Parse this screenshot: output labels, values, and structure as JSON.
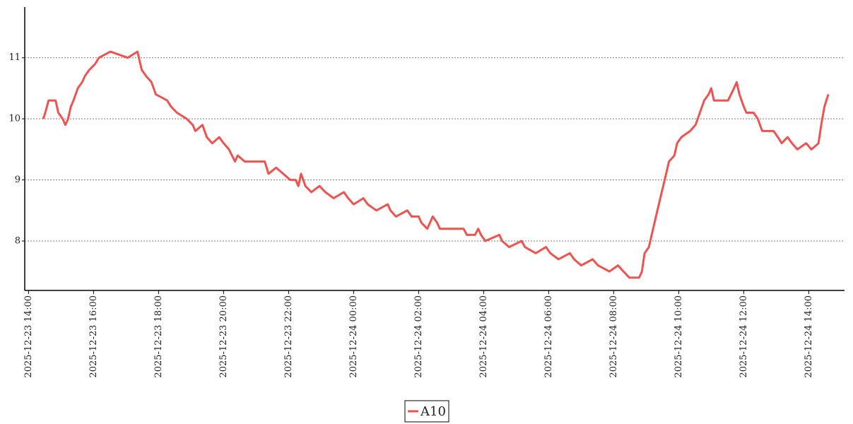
{
  "chart_data": {
    "type": "line",
    "x": [
      "2025-12-23 14:27",
      "2025-12-23 14:31",
      "2025-12-23 14:37",
      "2025-12-23 14:50",
      "2025-12-23 14:55",
      "2025-12-23 15:03",
      "2025-12-23 15:08",
      "2025-12-23 15:13",
      "2025-12-23 15:18",
      "2025-12-23 15:23",
      "2025-12-23 15:31",
      "2025-12-23 15:39",
      "2025-12-23 15:44",
      "2025-12-23 15:52",
      "2025-12-23 16:03",
      "2025-12-23 16:10",
      "2025-12-23 16:31",
      "2025-12-23 17:03",
      "2025-12-23 17:21",
      "2025-12-23 17:29",
      "2025-12-23 17:37",
      "2025-12-23 17:47",
      "2025-12-23 17:55",
      "2025-12-23 18:16",
      "2025-12-23 18:23",
      "2025-12-23 18:34",
      "2025-12-23 18:52",
      "2025-12-23 19:03",
      "2025-12-23 19:08",
      "2025-12-23 19:21",
      "2025-12-23 19:29",
      "2025-12-23 19:39",
      "2025-12-23 19:52",
      "2025-12-23 20:00",
      "2025-12-23 20:10",
      "2025-12-23 20:21",
      "2025-12-23 20:26",
      "2025-12-23 20:39",
      "2025-12-23 21:16",
      "2025-12-23 21:23",
      "2025-12-23 21:37",
      "2025-12-23 21:50",
      "2025-12-23 22:03",
      "2025-12-23 22:13",
      "2025-12-23 22:18",
      "2025-12-23 22:23",
      "2025-12-23 22:31",
      "2025-12-23 22:42",
      "2025-12-23 22:57",
      "2025-12-23 23:08",
      "2025-12-23 23:23",
      "2025-12-23 23:42",
      "2025-12-23 23:50",
      "2025-12-24 00:00",
      "2025-12-24 00:18",
      "2025-12-24 00:26",
      "2025-12-24 00:42",
      "2025-12-24 01:03",
      "2025-12-24 01:08",
      "2025-12-24 01:18",
      "2025-12-24 01:39",
      "2025-12-24 01:47",
      "2025-12-24 02:00",
      "2025-12-24 02:05",
      "2025-12-24 02:16",
      "2025-12-24 02:21",
      "2025-12-24 02:26",
      "2025-12-24 02:34",
      "2025-12-24 02:39",
      "2025-12-24 03:23",
      "2025-12-24 03:29",
      "2025-12-24 03:44",
      "2025-12-24 03:50",
      "2025-12-24 03:55",
      "2025-12-24 04:03",
      "2025-12-24 04:29",
      "2025-12-24 04:34",
      "2025-12-24 04:47",
      "2025-12-24 05:10",
      "2025-12-24 05:16",
      "2025-12-24 05:36",
      "2025-12-24 05:55",
      "2025-12-24 06:03",
      "2025-12-24 06:18",
      "2025-12-24 06:39",
      "2025-12-24 06:47",
      "2025-12-24 07:00",
      "2025-12-24 07:21",
      "2025-12-24 07:31",
      "2025-12-24 07:52",
      "2025-12-24 08:08",
      "2025-12-24 08:18",
      "2025-12-24 08:29",
      "2025-12-24 08:47",
      "2025-12-24 08:52",
      "2025-12-24 08:57",
      "2025-12-24 09:05",
      "2025-12-24 09:10",
      "2025-12-24 09:18",
      "2025-12-24 09:26",
      "2025-12-24 09:34",
      "2025-12-24 09:42",
      "2025-12-24 09:52",
      "2025-12-24 09:57",
      "2025-12-24 10:05",
      "2025-12-24 10:21",
      "2025-12-24 10:31",
      "2025-12-24 10:39",
      "2025-12-24 10:47",
      "2025-12-24 10:55",
      "2025-12-24 11:00",
      "2025-12-24 11:05",
      "2025-12-24 11:13",
      "2025-12-24 11:31",
      "2025-12-24 11:42",
      "2025-12-24 11:47",
      "2025-12-24 11:52",
      "2025-12-24 12:00",
      "2025-12-24 12:05",
      "2025-12-24 12:18",
      "2025-12-24 12:26",
      "2025-12-24 12:34",
      "2025-12-24 12:47",
      "2025-12-24 12:55",
      "2025-12-24 13:03",
      "2025-12-24 13:10",
      "2025-12-24 13:21",
      "2025-12-24 13:29",
      "2025-12-24 13:39",
      "2025-12-24 13:55",
      "2025-12-24 14:05",
      "2025-12-24 14:18",
      "2025-12-24 14:23",
      "2025-12-24 14:29",
      "2025-12-24 14:36"
    ],
    "series": [
      {
        "name": "A10",
        "color": "#ef5350",
        "values": [
          10.0,
          10.1,
          10.3,
          10.3,
          10.1,
          10.0,
          9.9,
          10.0,
          10.2,
          10.3,
          10.5,
          10.6,
          10.7,
          10.8,
          10.9,
          11.0,
          11.1,
          11.0,
          11.1,
          10.8,
          10.7,
          10.6,
          10.4,
          10.3,
          10.2,
          10.1,
          10.0,
          9.9,
          9.8,
          9.9,
          9.7,
          9.6,
          9.7,
          9.6,
          9.5,
          9.3,
          9.4,
          9.3,
          9.3,
          9.1,
          9.2,
          9.1,
          9.0,
          9.0,
          8.9,
          9.1,
          8.9,
          8.8,
          8.9,
          8.8,
          8.7,
          8.8,
          8.7,
          8.6,
          8.7,
          8.6,
          8.5,
          8.6,
          8.5,
          8.4,
          8.5,
          8.4,
          8.4,
          8.3,
          8.2,
          8.3,
          8.4,
          8.3,
          8.2,
          8.2,
          8.1,
          8.1,
          8.2,
          8.1,
          8.0,
          8.1,
          8.0,
          7.9,
          8.0,
          7.9,
          7.8,
          7.9,
          7.8,
          7.7,
          7.8,
          7.7,
          7.6,
          7.7,
          7.6,
          7.5,
          7.6,
          7.5,
          7.4,
          7.4,
          7.5,
          7.8,
          7.9,
          8.1,
          8.4,
          8.7,
          9.0,
          9.3,
          9.4,
          9.6,
          9.7,
          9.8,
          9.9,
          10.1,
          10.3,
          10.4,
          10.5,
          10.3,
          10.3,
          10.3,
          10.5,
          10.6,
          10.4,
          10.2,
          10.1,
          10.1,
          10.0,
          9.8,
          9.8,
          9.8,
          9.7,
          9.6,
          9.7,
          9.6,
          9.5,
          9.6,
          9.5,
          9.6,
          9.9,
          10.2,
          10.4
        ]
      }
    ],
    "xlim": [
      "2025-12-23 13:53",
      "2025-12-24 15:06"
    ],
    "xticks": [
      "2025-12-23 14:00",
      "2025-12-23 16:00",
      "2025-12-23 18:00",
      "2025-12-23 20:00",
      "2025-12-23 22:00",
      "2025-12-24 00:00",
      "2025-12-24 02:00",
      "2025-12-24 04:00",
      "2025-12-24 06:00",
      "2025-12-24 08:00",
      "2025-12-24 10:00",
      "2025-12-24 12:00",
      "2025-12-24 14:00"
    ],
    "ylim": [
      7.19,
      11.83
    ],
    "yticks": [
      8,
      9,
      10,
      11
    ],
    "grid": true
  }
}
